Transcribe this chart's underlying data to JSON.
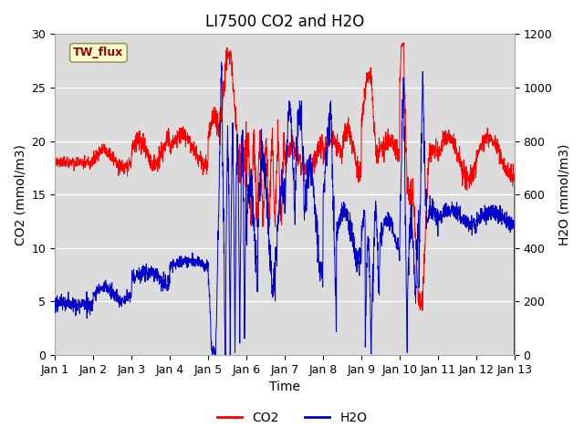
{
  "title": "LI7500 CO2 and H2O",
  "ylabel_left": "CO2 (mmol/m3)",
  "ylabel_right": "H2O (mmol/m3)",
  "xlabel": "Time",
  "ylim_left": [
    0,
    30
  ],
  "ylim_right": [
    0,
    1200
  ],
  "xlim": [
    0,
    12
  ],
  "xtick_labels": [
    "Jan 1",
    "Jan 2",
    "Jan 3",
    "Jan 4",
    "Jan 5",
    "Jan 6",
    "Jan 7",
    "Jan 8",
    "Jan 9",
    "Jan 10",
    "Jan 11",
    "Jan 12",
    "Jan 13"
  ],
  "yticks_left": [
    0,
    5,
    10,
    15,
    20,
    25,
    30
  ],
  "yticks_right": [
    0,
    200,
    400,
    600,
    800,
    1000,
    1200
  ],
  "co2_color": "#ff0000",
  "h2o_color": "#0000cc",
  "bg_color": "#dcdcdc",
  "fig_bg": "#ffffff",
  "site_label": "TW_flux",
  "site_label_text_color": "#990000",
  "site_label_bg": "#ffffcc",
  "site_label_border": "#999966",
  "legend_entries": [
    "CO2",
    "H2O"
  ],
  "title_fontsize": 12,
  "axis_fontsize": 10,
  "tick_fontsize": 9
}
